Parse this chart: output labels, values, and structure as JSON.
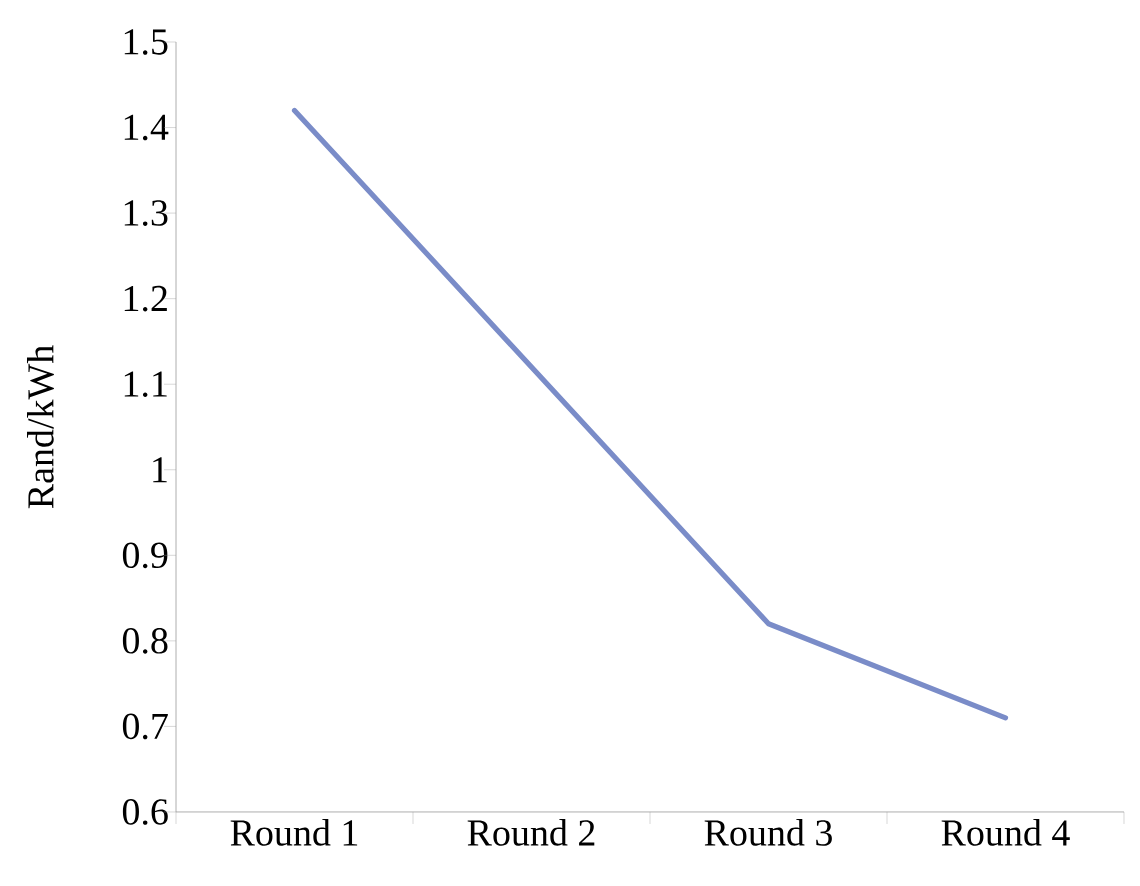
{
  "chart_data": {
    "type": "line",
    "ylabel": "Rand/kWh",
    "categories": [
      "Round 1",
      "Round 2",
      "Round 3",
      "Round 4"
    ],
    "series": [
      {
        "color": "#7a8cc8",
        "values": [
          1.42,
          1.12,
          0.82,
          0.71
        ]
      }
    ],
    "ylim": [
      0.6,
      1.5
    ],
    "yticks": [
      0.6,
      0.7,
      0.8,
      0.9,
      1,
      1.1,
      1.2,
      1.3,
      1.4,
      1.5
    ],
    "grid": false,
    "marker": "none",
    "line_style": "solid"
  }
}
